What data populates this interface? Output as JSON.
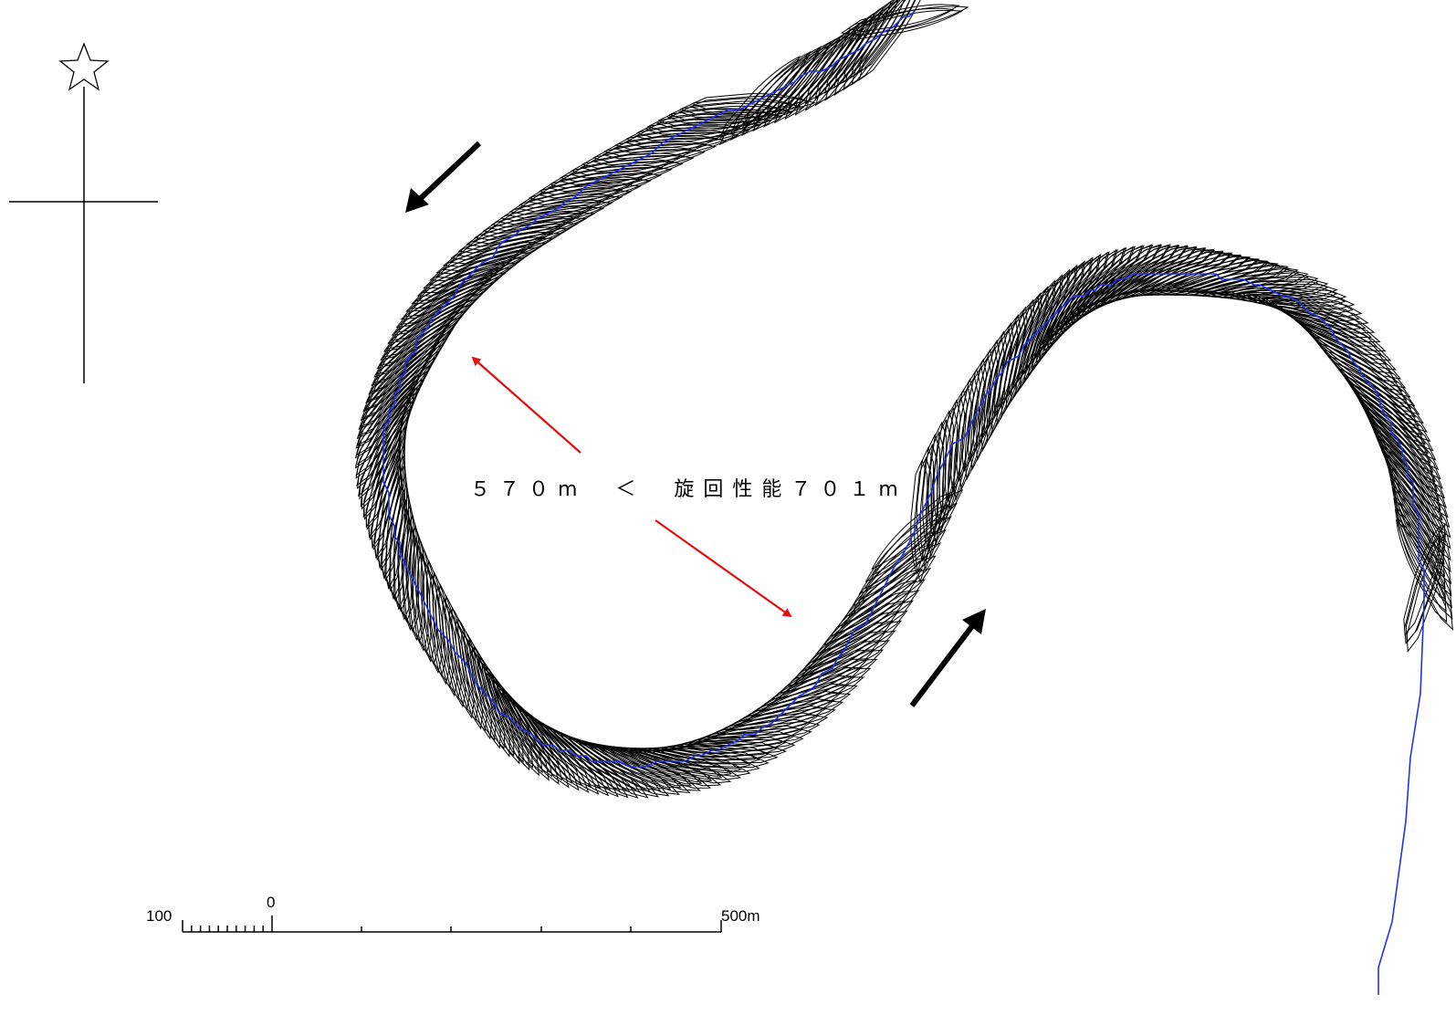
{
  "annotation": "５７０m　＜　旋回性能７０１m",
  "scale_bar": {
    "left_label": "100",
    "zero_label": "0",
    "right_label": "500m"
  },
  "north_arrow": {
    "icon": "star-icon"
  },
  "colors": {
    "track": "#2233ee",
    "hull_outline": "#000000",
    "measure_arrow": "#e01010",
    "direction_arrow": "#000000"
  }
}
